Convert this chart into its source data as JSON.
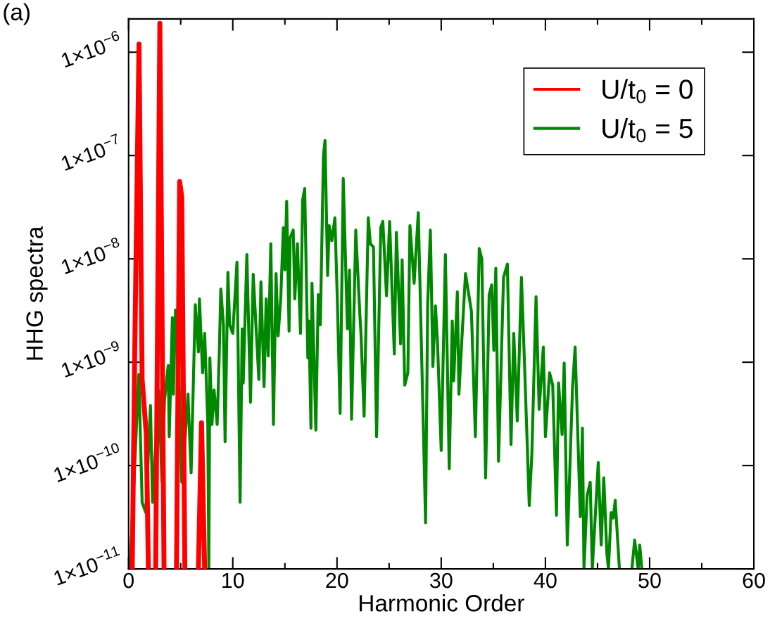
{
  "chart_data": {
    "type": "line",
    "xlabel": "Harmonic Order",
    "ylabel": "HHG spectra",
    "annotations": [
      "(a)"
    ],
    "log": "y",
    "xlim": [
      0,
      60
    ],
    "ylim": [
      1e-11,
      2.1e-06
    ],
    "xticks": [
      0,
      {
        "value": 5,
        "label": null
      },
      10,
      {
        "value": 15,
        "label": null
      },
      20,
      {
        "value": 25,
        "label": null
      },
      30,
      {
        "value": 35,
        "label": null
      },
      40,
      {
        "value": 45,
        "label": null
      },
      50,
      {
        "value": 55,
        "label": null
      },
      60
    ],
    "yticks": [
      {
        "value": 1e-11,
        "label": "1×10$^{−11}$"
      },
      {
        "value": 1e-10,
        "label": "1×10$^{−10}$"
      },
      {
        "value": 1e-09,
        "label": "1×10$^{−9}$"
      },
      {
        "value": 1e-08,
        "label": "1×10$^{−8}$"
      },
      {
        "value": 1e-07,
        "label": "1×10$^{−7}$"
      },
      {
        "value": 1e-06,
        "label": "1×10$^{−6}$"
      }
    ],
    "grid": false,
    "legend": "top right",
    "line_style": "solid",
    "marker": "none",
    "series": [
      {
        "name": "U/t$_{0}$ = 0",
        "color": "#ff0000",
        "x": [
          0.35,
          0.6,
          1.0,
          1.3,
          1.7,
          1.9,
          2.2,
          2.6,
          3.0,
          3.4,
          4.0,
          4.6,
          4.9,
          5.1,
          5.4,
          6.0,
          6.7,
          7.0,
          7.3
        ],
        "values": [
          1e-11,
          1.5e-09,
          1.2e-06,
          6.8e-10,
          2e-10,
          1e-11,
          null,
          1e-11,
          1.9e-06,
          1e-11,
          null,
          1e-11,
          5.6e-08,
          4e-08,
          1e-11,
          null,
          1e-11,
          2.6e-10,
          1e-11
        ]
      },
      {
        "name": "U/t$_{0}$ = 5",
        "color": "#008800",
        "x": [
          0.15,
          0.3,
          0.98,
          1.3,
          1.65,
          2.1,
          2.3,
          2.9,
          3.2,
          3.45,
          3.8,
          3.9,
          4.2,
          4.3,
          4.5,
          4.8,
          5.1,
          5.3,
          5.7,
          6.0,
          6.4,
          6.7,
          6.8,
          7.1,
          7.3,
          7.6,
          7.7,
          7.8,
          8.0,
          8.2,
          8.5,
          8.7,
          8.85,
          9.1,
          9.26,
          9.53,
          9.7,
          10.0,
          10.4,
          10.7,
          10.9,
          11.0,
          11.35,
          11.7,
          11.96,
          12.5,
          12.7,
          13.0,
          13.2,
          13.4,
          13.65,
          13.9,
          14.15,
          14.35,
          14.6,
          14.85,
          15.0,
          15.17,
          15.4,
          15.5,
          15.8,
          15.95,
          16.2,
          16.5,
          16.7,
          16.9,
          17.2,
          17.3,
          17.5,
          17.6,
          17.97,
          18.2,
          18.4,
          18.7,
          18.85,
          19.1,
          19.25,
          19.5,
          19.8,
          20.05,
          20.3,
          20.6,
          21.0,
          21.2,
          21.4,
          21.8,
          22.2,
          22.3,
          22.6,
          23.0,
          23.2,
          23.5,
          23.8,
          24.2,
          24.4,
          24.75,
          25.05,
          25.5,
          25.7,
          26.1,
          26.25,
          26.5,
          26.8,
          27.0,
          27.4,
          27.8,
          28.0,
          28.5,
          28.7,
          28.96,
          29.2,
          29.45,
          29.65,
          30.0,
          30.4,
          30.77,
          31.06,
          31.2,
          31.55,
          31.7,
          32.0,
          32.33,
          32.9,
          33.28,
          33.65,
          33.9,
          34.26,
          34.6,
          34.85,
          35.05,
          35.24,
          35.5,
          35.98,
          36.35,
          36.7,
          36.96,
          37.3,
          37.7,
          38.0,
          38.45,
          38.7,
          39.1,
          39.4,
          39.8,
          40.0,
          40.4,
          40.7,
          41.06,
          41.26,
          41.6,
          41.8,
          42.1,
          42.6,
          42.85,
          43.35,
          43.55,
          43.7,
          44.0,
          44.3,
          44.5,
          45.07,
          45.35,
          45.6,
          45.9,
          46.05,
          46.3,
          46.5,
          46.7,
          47.1,
          47.6,
          48.3,
          48.56,
          48.9,
          49.05,
          49.25
        ],
        "values": [
          1e-11,
          2.3e-11,
          7.6e-10,
          4.4e-11,
          3.5e-11,
          3.8e-10,
          4.4e-11,
          5.4e-10,
          6.9e-11,
          4.3e-10,
          9.3e-10,
          1.9e-10,
          2.7e-09,
          4.9e-10,
          3.2e-09,
          1e-09,
          6.9e-11,
          1.2e-10,
          4.9e-10,
          8.5e-11,
          3.6e-09,
          1.26e-09,
          4.1e-09,
          7.9e-10,
          1.9e-09,
          2.6e-10,
          1e-11,
          1.1e-09,
          2.5e-10,
          5.4e-10,
          2.5e-10,
          1.2e-09,
          5.1e-09,
          2.3e-09,
          1.7e-10,
          7.4e-09,
          2.3e-09,
          1.9e-09,
          9.3e-09,
          4.4e-11,
          2.1e-09,
          6.3e-10,
          1.1e-08,
          4.1e-10,
          7.1e-09,
          6.8e-10,
          6e-09,
          5.8e-10,
          4.1e-09,
          1.15e-09,
          1.4e-08,
          2.5e-10,
          7.2e-09,
          1.8e-09,
          4.1e-09,
          2e-08,
          7.8e-09,
          3.6e-08,
          2e-09,
          1.6e-08,
          1.9e-08,
          4.1e-09,
          1.4e-08,
          1.9e-09,
          3.7e-08,
          4.8e-08,
          1.1e-09,
          2.5e-09,
          2.3e-10,
          5.8e-09,
          2.2e-10,
          4.5e-09,
          2.3e-09,
          1e-07,
          1.4e-07,
          6.9e-09,
          2.1e-08,
          1.5e-08,
          2.5e-08,
          3.4e-09,
          3.2e-10,
          6e-08,
          2.1e-09,
          7.8e-09,
          2.8e-10,
          1.9e-08,
          2.8e-09,
          1.9e-09,
          3e-10,
          2.5e-08,
          1.4e-08,
          1.3e-08,
          1.9e-10,
          2e-08,
          2.3e-08,
          4.4e-09,
          2.3e-08,
          1.2e-09,
          1.8e-08,
          1.5e-09,
          9.8e-09,
          6e-10,
          7.9e-10,
          2.1e-08,
          5.8e-09,
          2.8e-08,
          3.9e-09,
          2.8e-11,
          3.6e-09,
          1.9e-08,
          9.1e-10,
          3.5e-09,
          1.5e-09,
          1.4e-10,
          1.1e-08,
          9.3e-11,
          2.5e-09,
          6.6e-10,
          4.8e-09,
          4.9e-10,
          1.8e-09,
          7.2e-09,
          3.1e-09,
          1.9e-10,
          1.26e-08,
          1e-08,
          7.6e-11,
          4.5e-09,
          5.6e-09,
          1.3e-09,
          8.1e-09,
          1.1e-10,
          6.6e-09,
          8.9e-09,
          1.6e-10,
          1.9e-09,
          2.7e-10,
          6.6e-09,
          9.3e-10,
          4.1e-11,
          1.3e-10,
          4.3e-09,
          3.5e-10,
          1.4e-09,
          1.9e-10,
          7.9e-10,
          6e-10,
          3.3e-11,
          6.3e-10,
          2e-10,
          9.8e-10,
          1.7e-11,
          5.6e-10,
          1.4e-09,
          3.2e-11,
          2.3e-10,
          1e-11,
          5.1e-11,
          6.9e-11,
          1e-11,
          1.07e-10,
          1.7e-11,
          7.6e-11,
          1.4e-11,
          1e-11,
          3.5e-11,
          3.1e-11,
          4.6e-11,
          1e-11,
          null,
          1e-11,
          1.9e-11,
          1e-11,
          1.7e-11,
          1e-11
        ]
      }
    ]
  }
}
